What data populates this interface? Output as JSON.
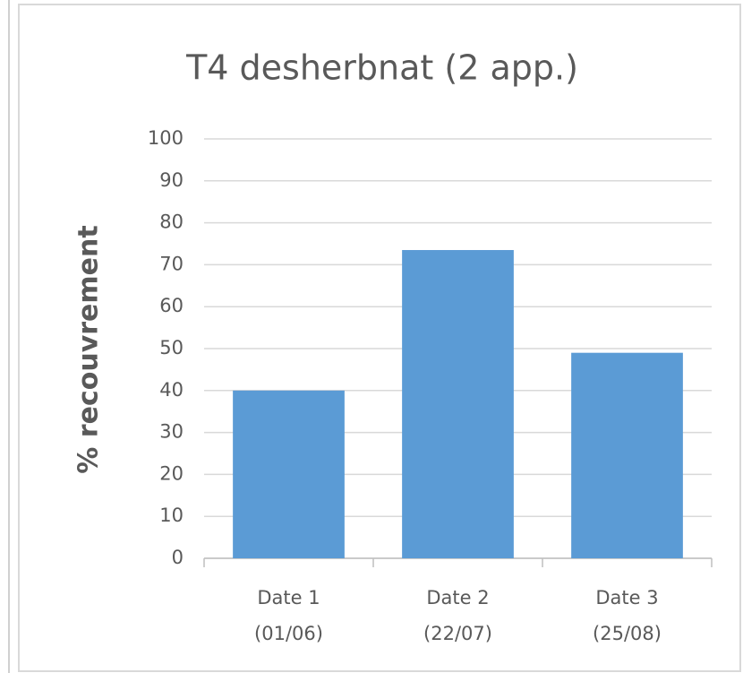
{
  "chart_data": {
    "type": "bar",
    "title": "T4 desherbnat (2 app.)",
    "y_label": "% recouvrement",
    "categories": [
      [
        "Date 1",
        "(01/06)"
      ],
      [
        "Date 2",
        "(22/07)"
      ],
      [
        "Date 3",
        "(25/08)"
      ]
    ],
    "values": [
      40,
      73.5,
      49
    ],
    "color": "#5b9bd5",
    "ylim": [
      0,
      100
    ],
    "yticks": [
      0,
      10,
      20,
      30,
      40,
      50,
      60,
      70,
      80,
      90,
      100
    ],
    "grid": true
  }
}
